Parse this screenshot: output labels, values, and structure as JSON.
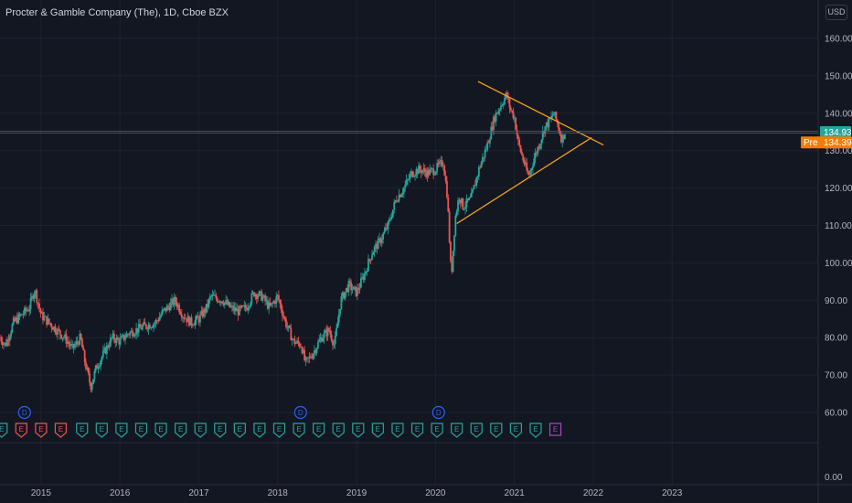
{
  "header": {
    "title": "Procter & Gamble Company (The), 1D, Cboe BZX",
    "currency": "USD"
  },
  "chart_data": {
    "type": "candlestick",
    "symbol": "PG",
    "interval": "1D",
    "y_axis": {
      "ticks": [
        {
          "value": 160,
          "label": "160.00"
        },
        {
          "value": 150,
          "label": "150.00"
        },
        {
          "value": 140,
          "label": "140.00"
        },
        {
          "value": 130,
          "label": "130.00"
        },
        {
          "value": 120,
          "label": "120.00"
        },
        {
          "value": 110,
          "label": "110.00"
        },
        {
          "value": 100,
          "label": "100.00"
        },
        {
          "value": 90,
          "label": "90.00"
        },
        {
          "value": 80,
          "label": "80.00"
        },
        {
          "value": 70,
          "label": "70.00"
        },
        {
          "value": 60,
          "label": "60.00"
        }
      ],
      "zero_label": "0.00",
      "range": [
        55,
        165
      ]
    },
    "x_axis": {
      "ticks": [
        {
          "value": 2015,
          "label": "2015"
        },
        {
          "value": 2016,
          "label": "2016"
        },
        {
          "value": 2017,
          "label": "2017"
        },
        {
          "value": 2018,
          "label": "2018"
        },
        {
          "value": 2019,
          "label": "2019"
        },
        {
          "value": 2020,
          "label": "2020"
        },
        {
          "value": 2021,
          "label": "2021"
        },
        {
          "value": 2022,
          "label": "2022"
        },
        {
          "value": 2023,
          "label": "2023"
        }
      ],
      "range": [
        2014.48,
        2025.28
      ]
    },
    "price_path": [
      [
        2014.48,
        80
      ],
      [
        2014.55,
        78
      ],
      [
        2014.65,
        84
      ],
      [
        2014.75,
        86
      ],
      [
        2014.85,
        88
      ],
      [
        2014.92,
        93
      ],
      [
        2015.0,
        86
      ],
      [
        2015.1,
        84
      ],
      [
        2015.2,
        82
      ],
      [
        2015.3,
        80
      ],
      [
        2015.4,
        77
      ],
      [
        2015.5,
        80
      ],
      [
        2015.55,
        74
      ],
      [
        2015.63,
        67
      ],
      [
        2015.7,
        72
      ],
      [
        2015.8,
        76
      ],
      [
        2015.9,
        80
      ],
      [
        2016.0,
        79
      ],
      [
        2016.1,
        81
      ],
      [
        2016.2,
        82
      ],
      [
        2016.3,
        83
      ],
      [
        2016.45,
        84
      ],
      [
        2016.55,
        87
      ],
      [
        2016.7,
        90
      ],
      [
        2016.8,
        86
      ],
      [
        2016.9,
        84
      ],
      [
        2017.0,
        85
      ],
      [
        2017.1,
        88
      ],
      [
        2017.15,
        91
      ],
      [
        2017.3,
        90
      ],
      [
        2017.4,
        88
      ],
      [
        2017.5,
        87
      ],
      [
        2017.6,
        88
      ],
      [
        2017.7,
        92
      ],
      [
        2017.8,
        91
      ],
      [
        2017.9,
        88
      ],
      [
        2018.0,
        91
      ],
      [
        2018.1,
        84
      ],
      [
        2018.2,
        79
      ],
      [
        2018.3,
        78
      ],
      [
        2018.35,
        73
      ],
      [
        2018.45,
        76
      ],
      [
        2018.55,
        80
      ],
      [
        2018.65,
        82
      ],
      [
        2018.72,
        78
      ],
      [
        2018.8,
        90
      ],
      [
        2018.9,
        94
      ],
      [
        2019.0,
        92
      ],
      [
        2019.1,
        97
      ],
      [
        2019.2,
        103
      ],
      [
        2019.3,
        106
      ],
      [
        2019.4,
        110
      ],
      [
        2019.5,
        117
      ],
      [
        2019.6,
        120
      ],
      [
        2019.7,
        124
      ],
      [
        2019.8,
        125
      ],
      [
        2019.9,
        124
      ],
      [
        2020.0,
        125
      ],
      [
        2020.1,
        127
      ],
      [
        2020.15,
        118
      ],
      [
        2020.2,
        96
      ],
      [
        2020.25,
        112
      ],
      [
        2020.3,
        118
      ],
      [
        2020.35,
        115
      ],
      [
        2020.45,
        117
      ],
      [
        2020.55,
        125
      ],
      [
        2020.65,
        131
      ],
      [
        2020.75,
        139
      ],
      [
        2020.85,
        143
      ],
      [
        2020.9,
        145
      ],
      [
        2020.95,
        141
      ],
      [
        2021.0,
        139
      ],
      [
        2021.05,
        132
      ],
      [
        2021.12,
        127
      ],
      [
        2021.18,
        123
      ],
      [
        2021.25,
        128
      ],
      [
        2021.32,
        132
      ],
      [
        2021.38,
        136
      ],
      [
        2021.45,
        138
      ],
      [
        2021.5,
        140
      ],
      [
        2021.55,
        137
      ],
      [
        2021.6,
        133
      ],
      [
        2021.64,
        135
      ]
    ],
    "trendlines": [
      {
        "name": "upper",
        "color": "#f7a21b",
        "from": [
          2020.54,
          148.5
        ],
        "to": [
          2022.13,
          131.5
        ]
      },
      {
        "name": "lower",
        "color": "#f7a21b",
        "from": [
          2020.27,
          110.5
        ],
        "to": [
          2021.98,
          133.5
        ]
      }
    ],
    "last_price": {
      "value": 134.93,
      "label": "134.93",
      "color": "#26a69a"
    },
    "pre_market": {
      "prefix": "Pre",
      "value": 134.39,
      "label": "134.39",
      "color": "#f57c00"
    },
    "event_markers": {
      "dividends": [
        {
          "x": 2014.79,
          "label": "D"
        },
        {
          "x": 2018.29,
          "label": "D"
        },
        {
          "x": 2020.04,
          "label": "D"
        }
      ],
      "earnings": [
        {
          "x": 2014.5,
          "label": "E",
          "status": "beat"
        },
        {
          "x": 2014.75,
          "label": "E",
          "status": "miss"
        },
        {
          "x": 2015.0,
          "label": "E",
          "status": "miss"
        },
        {
          "x": 2015.25,
          "label": "E",
          "status": "miss"
        },
        {
          "x": 2015.52,
          "label": "E",
          "status": "beat"
        },
        {
          "x": 2015.77,
          "label": "E",
          "status": "beat"
        },
        {
          "x": 2016.02,
          "label": "E",
          "status": "beat"
        },
        {
          "x": 2016.27,
          "label": "E",
          "status": "beat"
        },
        {
          "x": 2016.52,
          "label": "E",
          "status": "beat"
        },
        {
          "x": 2016.77,
          "label": "E",
          "status": "beat"
        },
        {
          "x": 2017.02,
          "label": "E",
          "status": "beat"
        },
        {
          "x": 2017.27,
          "label": "E",
          "status": "beat"
        },
        {
          "x": 2017.52,
          "label": "E",
          "status": "beat"
        },
        {
          "x": 2017.77,
          "label": "E",
          "status": "beat"
        },
        {
          "x": 2018.02,
          "label": "E",
          "status": "beat"
        },
        {
          "x": 2018.27,
          "label": "E",
          "status": "beat"
        },
        {
          "x": 2018.52,
          "label": "E",
          "status": "beat"
        },
        {
          "x": 2018.77,
          "label": "E",
          "status": "beat"
        },
        {
          "x": 2019.02,
          "label": "E",
          "status": "beat"
        },
        {
          "x": 2019.27,
          "label": "E",
          "status": "beat"
        },
        {
          "x": 2019.52,
          "label": "E",
          "status": "beat"
        },
        {
          "x": 2019.77,
          "label": "E",
          "status": "beat"
        },
        {
          "x": 2020.02,
          "label": "E",
          "status": "beat"
        },
        {
          "x": 2020.27,
          "label": "E",
          "status": "beat"
        },
        {
          "x": 2020.52,
          "label": "E",
          "status": "beat"
        },
        {
          "x": 2020.77,
          "label": "E",
          "status": "beat"
        },
        {
          "x": 2021.02,
          "label": "E",
          "status": "beat"
        },
        {
          "x": 2021.27,
          "label": "E",
          "status": "beat"
        },
        {
          "x": 2021.52,
          "label": "E",
          "status": "upcoming"
        }
      ]
    },
    "colors": {
      "background": "#131722",
      "up": "#26a69a",
      "down": "#ef5350",
      "grid": "#1e222d",
      "axis_text": "#b2b5be",
      "dividend": "#2962ff",
      "earnings_beat": "#26a69a",
      "earnings_miss": "#ef5350",
      "earnings_upcoming": "#ab47bc"
    }
  }
}
